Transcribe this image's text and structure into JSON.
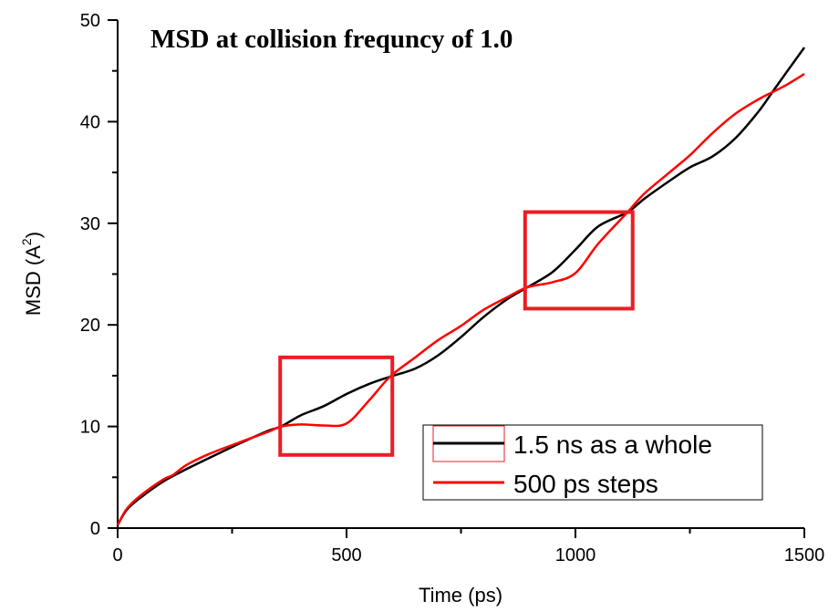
{
  "chart_data": {
    "type": "line",
    "title": "MSD at collision frequncy of 1.0",
    "xlabel": "Time (ps)",
    "ylabel_main": "MSD (A",
    "ylabel_sup": "2",
    "ylabel_close": ")",
    "xlim": [
      0,
      1500
    ],
    "ylim": [
      0,
      50
    ],
    "x_ticks": [
      0,
      500,
      1000,
      1500
    ],
    "x_tick_labels": [
      "0",
      "500",
      "1000",
      "1500"
    ],
    "x_minor_ticks": [
      250,
      750,
      1250
    ],
    "y_ticks": [
      0,
      10,
      20,
      30,
      40,
      50
    ],
    "y_tick_labels": [
      "0",
      "10",
      "20",
      "30",
      "40",
      "50"
    ],
    "y_minor_ticks": [
      5,
      15,
      25,
      35,
      45
    ],
    "grid": false,
    "legend_position": "bottom-right",
    "series": [
      {
        "name": "1.5 ns as a whole",
        "color": "#000000",
        "x": [
          0,
          20,
          50,
          100,
          150,
          200,
          270,
          330,
          357,
          400,
          450,
          500,
          550,
          595,
          650,
          700,
          750,
          800,
          850,
          895,
          950,
          1000,
          1050,
          1114,
          1150,
          1200,
          1250,
          1300,
          1350,
          1400,
          1430,
          1460,
          1500
        ],
        "y": [
          0.3,
          1.8,
          3.0,
          4.6,
          5.8,
          6.9,
          8.4,
          9.6,
          10.0,
          11.1,
          12.0,
          13.2,
          14.2,
          14.9,
          15.7,
          17.0,
          18.8,
          20.8,
          22.5,
          23.7,
          25.2,
          27.4,
          29.7,
          31.1,
          32.4,
          34.0,
          35.5,
          36.6,
          38.4,
          41.0,
          42.9,
          44.8,
          47.3
        ]
      },
      {
        "name": "500 ps steps",
        "color": "#ff0000",
        "x": [
          0,
          20,
          50,
          100,
          120,
          150,
          200,
          270,
          330,
          357,
          400,
          450,
          500,
          550,
          595,
          650,
          700,
          750,
          800,
          850,
          895,
          950,
          1000,
          1050,
          1114,
          1150,
          1200,
          1250,
          1300,
          1350,
          1400,
          1430,
          1460,
          1500
        ],
        "y": [
          0.3,
          1.9,
          3.2,
          4.8,
          5.2,
          6.2,
          7.3,
          8.5,
          9.5,
          10.0,
          10.2,
          10.1,
          10.3,
          12.6,
          14.9,
          16.8,
          18.5,
          19.9,
          21.5,
          22.7,
          23.7,
          24.2,
          25.1,
          28.0,
          31.1,
          32.9,
          34.8,
          36.7,
          38.9,
          40.8,
          42.2,
          42.9,
          43.6,
          44.7
        ]
      }
    ],
    "annotations": [
      {
        "type": "highlight-box",
        "color": "#ed1c24",
        "x_range": [
          355,
          600
        ],
        "y_range": [
          7.2,
          16.8
        ]
      },
      {
        "type": "highlight-box",
        "color": "#ed1c24",
        "x_range": [
          890,
          1125
        ],
        "y_range": [
          21.6,
          31.1
        ]
      }
    ],
    "legend_selection_box_color": "#ed1c24"
  }
}
